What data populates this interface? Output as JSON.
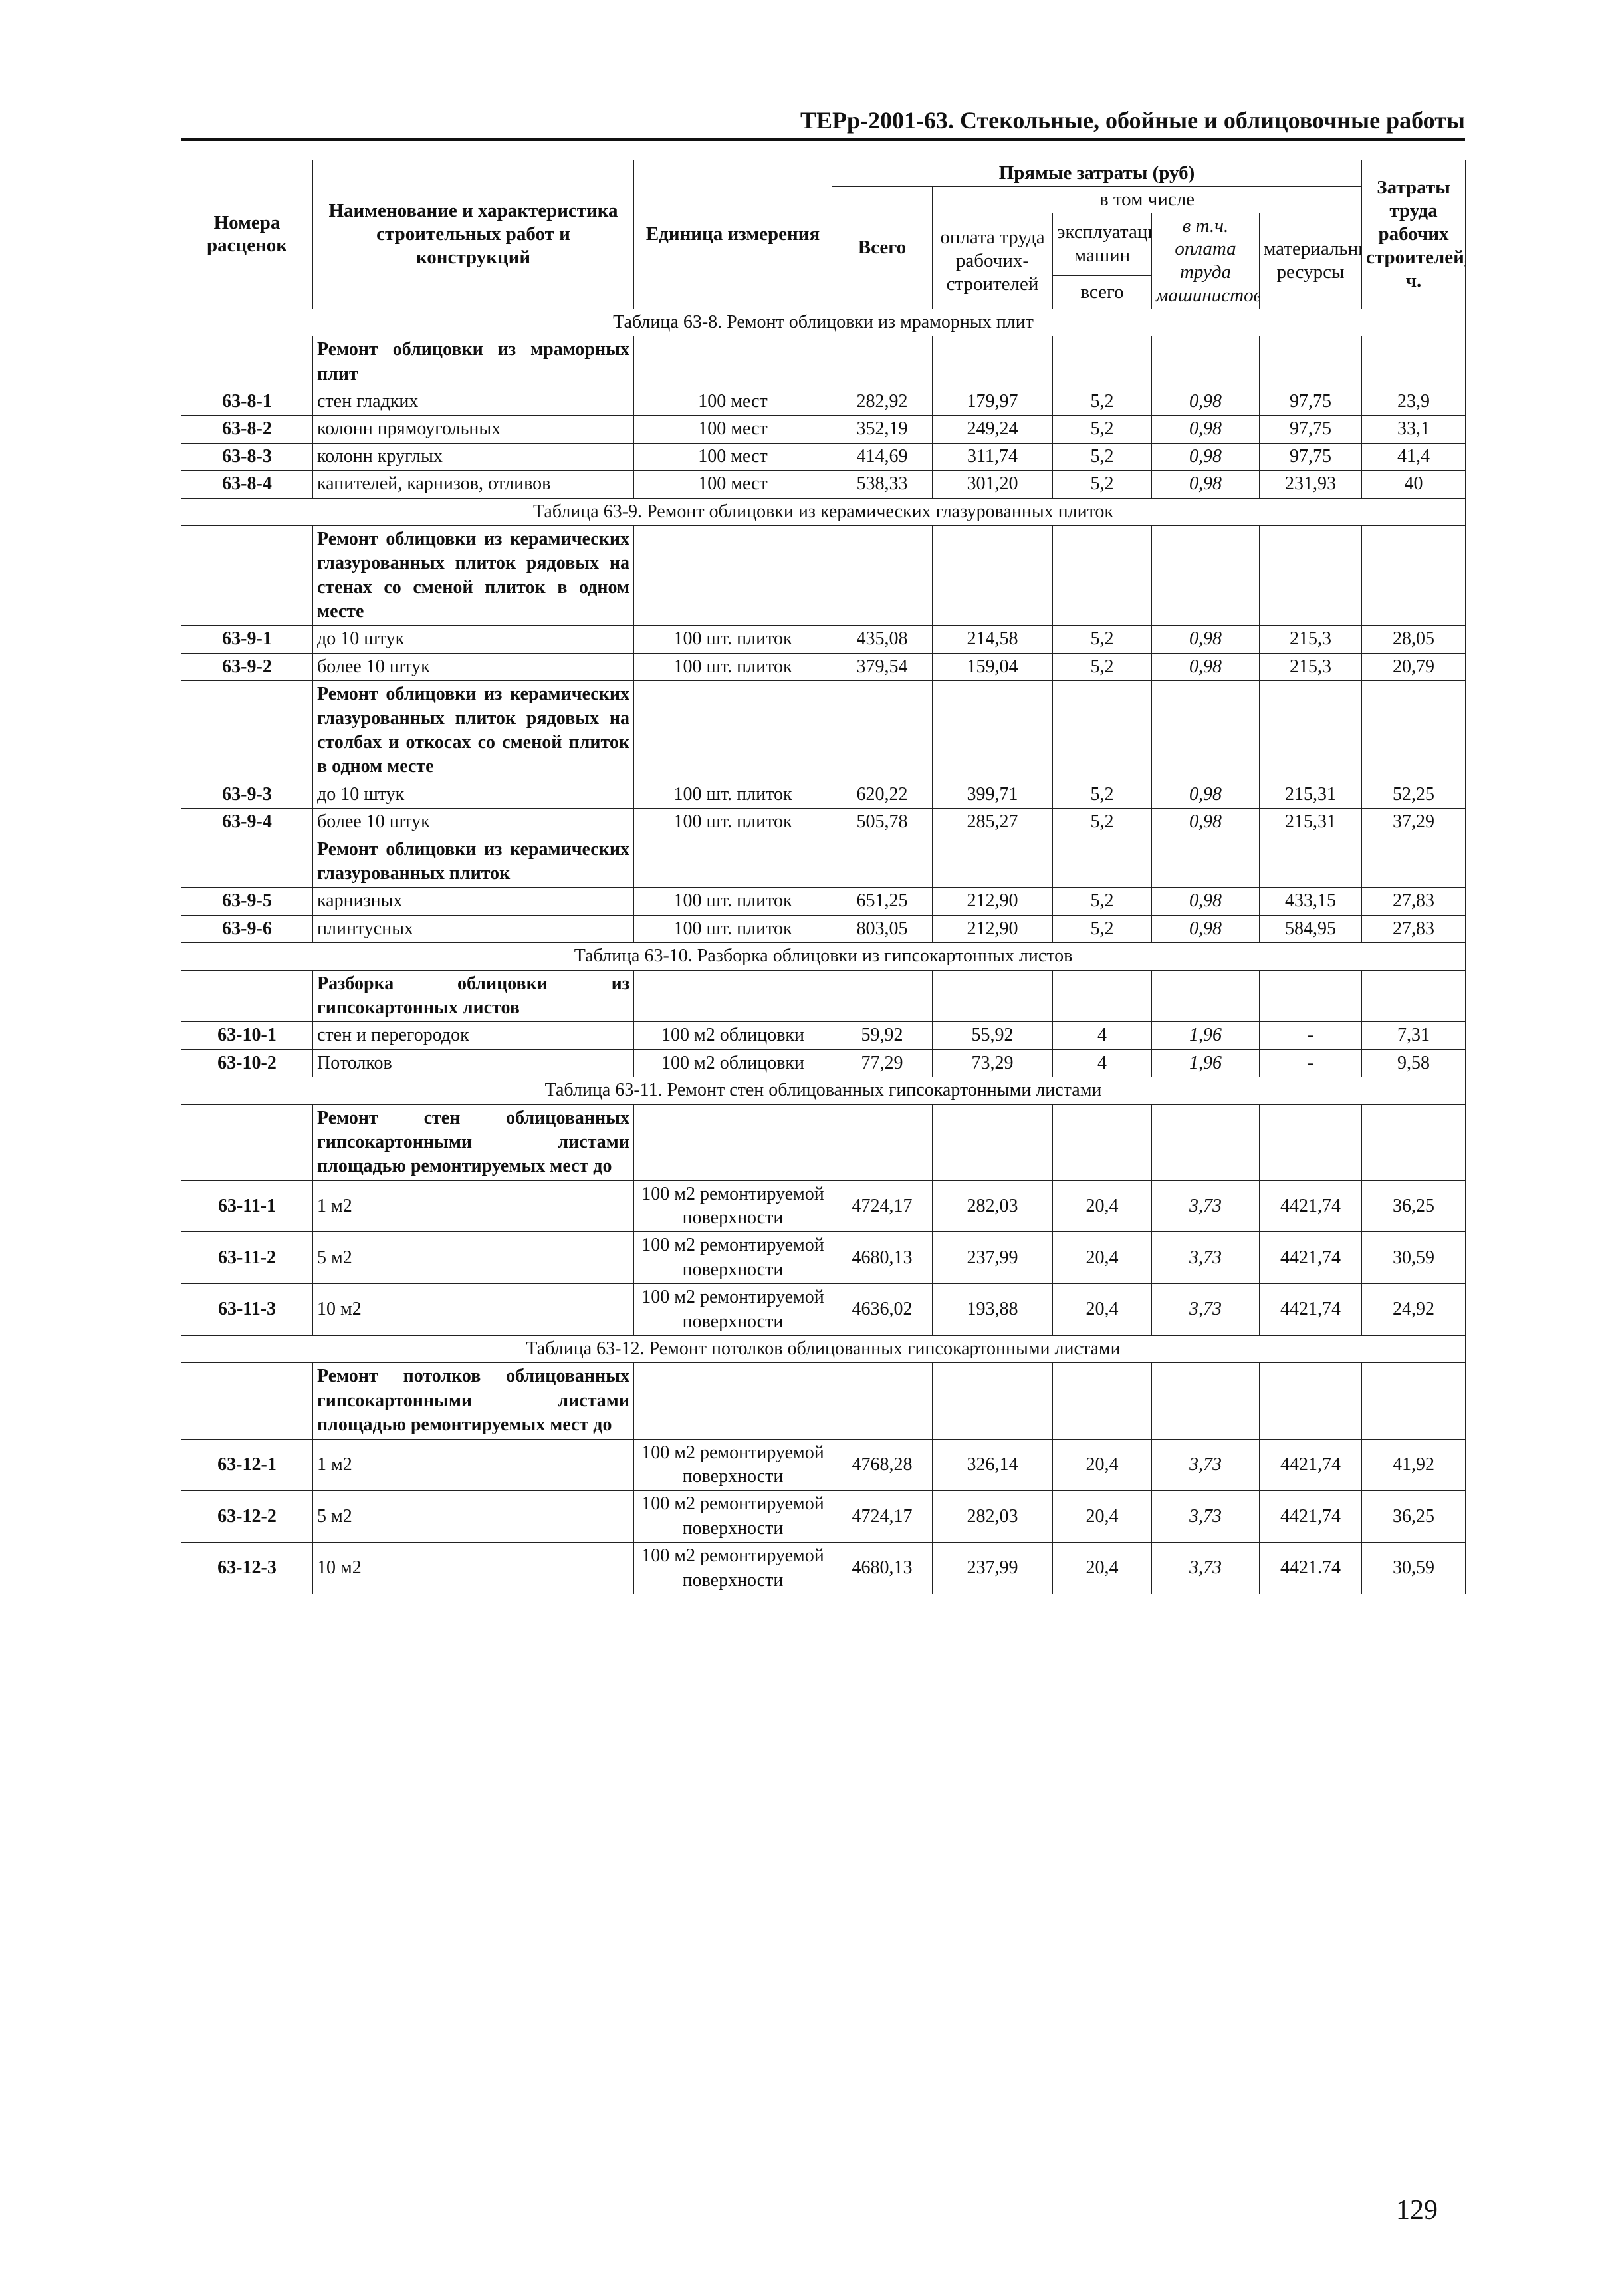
{
  "header": {
    "title": "ТЕРр-2001-63. Стекольные, обойные и облицовочные работы"
  },
  "table": {
    "header": {
      "code": "Номера расценок",
      "name": "Наименование и характеристика строительных работ и конструкций",
      "unit": "Единица измерения",
      "direct_costs": "Прямые затраты (руб)",
      "including": "в том числе",
      "total": "Всего",
      "wages": "оплата труда рабочих-строителей",
      "machines": "эксплуатация машин",
      "machines_total": "всего",
      "machine_wages": "в т.ч. оплата труда машинистов",
      "materials": "материальные ресурсы",
      "labor": "Затраты труда рабочих строителей,чел.-ч."
    },
    "sections": [
      {
        "title": "Таблица 63-8. Ремонт облицовки из мраморных плит",
        "rows": [
          {
            "name": "Ремонт облицовки из мраморных плит"
          },
          {
            "code": "63-8-1",
            "name": "стен гладких",
            "unit": "100 мест",
            "values": [
              "282,92",
              "179,97",
              "5,2",
              "0,98",
              "97,75",
              "23,9"
            ]
          },
          {
            "code": "63-8-2",
            "name": "колонн прямоугольных",
            "unit": "100 мест",
            "values": [
              "352,19",
              "249,24",
              "5,2",
              "0,98",
              "97,75",
              "33,1"
            ]
          },
          {
            "code": "63-8-3",
            "name": "колонн круглых",
            "unit": "100 мест",
            "values": [
              "414,69",
              "311,74",
              "5,2",
              "0,98",
              "97,75",
              "41,4"
            ]
          },
          {
            "code": "63-8-4",
            "name": "капителей, карнизов, отливов",
            "unit": "100 мест",
            "values": [
              "538,33",
              "301,20",
              "5,2",
              "0,98",
              "231,93",
              "40"
            ]
          }
        ]
      },
      {
        "title": "Таблица 63-9. Ремонт облицовки из керамических глазурованных плиток",
        "rows": [
          {
            "name": "Ремонт облицовки из керамических глазурованных плиток рядовых на стенах со сменой плиток в одном месте"
          },
          {
            "code": "63-9-1",
            "name": "до 10 штук",
            "unit": "100 шт. плиток",
            "values": [
              "435,08",
              "214,58",
              "5,2",
              "0,98",
              "215,3",
              "28,05"
            ]
          },
          {
            "code": "63-9-2",
            "name": "более 10 штук",
            "unit": "100 шт. плиток",
            "values": [
              "379,54",
              "159,04",
              "5,2",
              "0,98",
              "215,3",
              "20,79"
            ]
          },
          {
            "name": "Ремонт облицовки из керамических глазурованных плиток рядовых на столбах и откосах со сменой плиток в одном месте"
          },
          {
            "code": "63-9-3",
            "name": "до 10 штук",
            "unit": "100 шт. плиток",
            "values": [
              "620,22",
              "399,71",
              "5,2",
              "0,98",
              "215,31",
              "52,25"
            ]
          },
          {
            "code": "63-9-4",
            "name": "более 10 штук",
            "unit": "100 шт. плиток",
            "values": [
              "505,78",
              "285,27",
              "5,2",
              "0,98",
              "215,31",
              "37,29"
            ]
          },
          {
            "name": "Ремонт облицовки из керамических глазурованных плиток"
          },
          {
            "code": "63-9-5",
            "name": "карнизных",
            "unit": "100 шт. плиток",
            "values": [
              "651,25",
              "212,90",
              "5,2",
              "0,98",
              "433,15",
              "27,83"
            ]
          },
          {
            "code": "63-9-6",
            "name": "плинтусных",
            "unit": "100 шт. плиток",
            "values": [
              "803,05",
              "212,90",
              "5,2",
              "0,98",
              "584,95",
              "27,83"
            ]
          }
        ]
      },
      {
        "title": "Таблица 63-10. Разборка облицовки из гипсокартонных листов",
        "rows": [
          {
            "name": "Разборка облицовки из гипсокартонных листов"
          },
          {
            "code": "63-10-1",
            "name": "стен и перегородок",
            "unit": "100 м2 облицовки",
            "values": [
              "59,92",
              "55,92",
              "4",
              "1,96",
              "-",
              "7,31"
            ]
          },
          {
            "code": "63-10-2",
            "name": "Потолков",
            "unit": "100 м2 облицовки",
            "values": [
              "77,29",
              "73,29",
              "4",
              "1,96",
              "-",
              "9,58"
            ]
          }
        ]
      },
      {
        "title": "Таблица 63-11. Ремонт стен облицованных гипсокартонными листами",
        "rows": [
          {
            "name": "Ремонт стен облицованных гипсокартонными листами площадью ремонтируемых мест до"
          },
          {
            "code": "63-11-1",
            "name": "1 м2",
            "unit": "100 м2 ремонтируемой поверхности",
            "values": [
              "4724,17",
              "282,03",
              "20,4",
              "3,73",
              "4421,74",
              "36,25"
            ]
          },
          {
            "code": "63-11-2",
            "name": "5 м2",
            "unit": "100 м2 ремонтируемой поверхности",
            "values": [
              "4680,13",
              "237,99",
              "20,4",
              "3,73",
              "4421,74",
              "30,59"
            ]
          },
          {
            "code": "63-11-3",
            "name": "10 м2",
            "unit": "100 м2 ремонтируемой поверхности",
            "values": [
              "4636,02",
              "193,88",
              "20,4",
              "3,73",
              "4421,74",
              "24,92"
            ]
          }
        ]
      },
      {
        "title": "Таблица 63-12. Ремонт потолков облицованных гипсокартонными листами",
        "rows": [
          {
            "name": "Ремонт потолков облицованных гипсокартонными листами площадью ремонтируемых мест до"
          },
          {
            "code": "63-12-1",
            "name": "1 м2",
            "unit": "100 м2 ремонтируемой поверхности",
            "values": [
              "4768,28",
              "326,14",
              "20,4",
              "3,73",
              "4421,74",
              "41,92"
            ]
          },
          {
            "code": "63-12-2",
            "name": "5 м2",
            "unit": "100 м2 ремонтируемой поверхности",
            "values": [
              "4724,17",
              "282,03",
              "20,4",
              "3,73",
              "4421,74",
              "36,25"
            ]
          },
          {
            "code": "63-12-3",
            "name": "10 м2",
            "unit": "100 м2 ремонтируемой поверхности",
            "values": [
              "4680,13",
              "237,99",
              "20,4",
              "3,73",
              "4421.74",
              "30,59"
            ]
          }
        ]
      }
    ]
  },
  "page_number": "129"
}
